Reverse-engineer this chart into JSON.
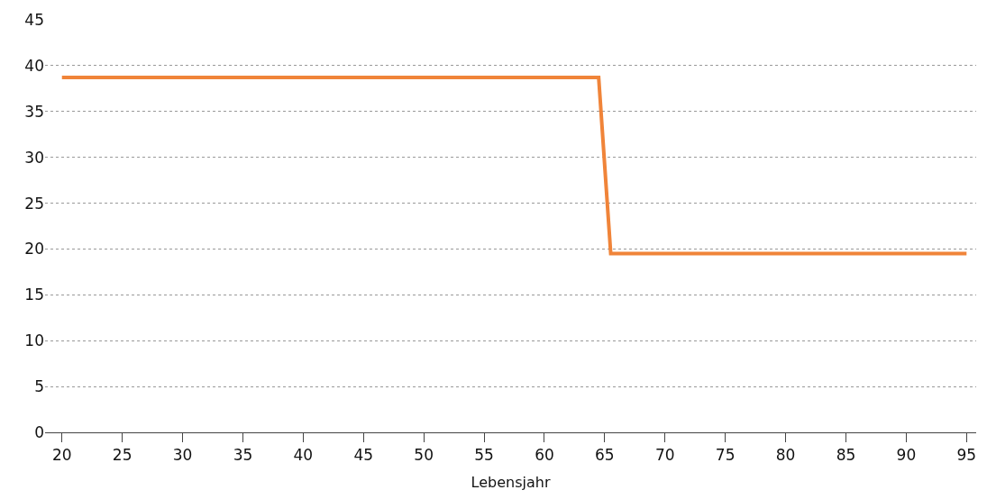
{
  "chart_data": {
    "type": "line",
    "xlabel": "Lebensjahr",
    "x": [
      20,
      64.5,
      65.5,
      95
    ],
    "series": [
      {
        "color": "#f08439",
        "values": [
          38.7,
          38.7,
          19.5,
          19.5
        ]
      }
    ],
    "xlim": [
      18.6,
      95.8
    ],
    "xticks": [
      20,
      25,
      30,
      35,
      40,
      45,
      50,
      55,
      60,
      65,
      70,
      75,
      80,
      85,
      90,
      95
    ],
    "ylim": [
      0,
      45
    ],
    "yticks": [
      0,
      5,
      10,
      15,
      20,
      25,
      30,
      35,
      40,
      45
    ],
    "grid": "y",
    "legend": false,
    "marker": "none",
    "line_style": "solid"
  }
}
